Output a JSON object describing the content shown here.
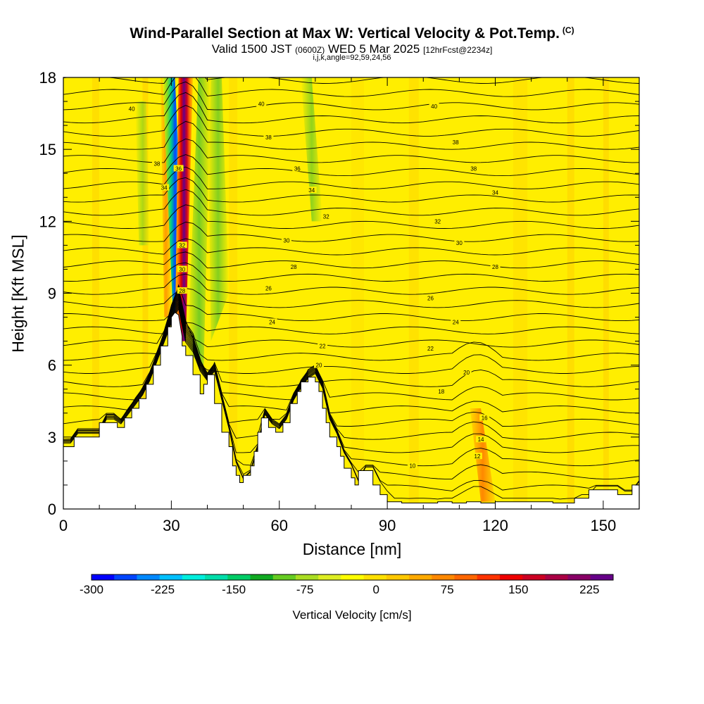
{
  "header": {
    "title": "Wind-Parallel Section at Max W: Vertical Velocity & Pot.Temp.",
    "copyright": "(C)",
    "valid_pre": "Valid 1500 JST",
    "valid_zulu": "(0600Z)",
    "valid_date": "WED 5 Mar 2025",
    "forecast": "[12hrFcst@2234z]",
    "indices": "i,j,k,angle=92,59,24,56"
  },
  "chart_data": {
    "type": "heatmap",
    "title": "Wind-Parallel Section at Max W: Vertical Velocity & Pot.Temp.",
    "xlabel": "Distance [nm]",
    "ylabel": "Height [Kft MSL]",
    "xlim": [
      0,
      160
    ],
    "ylim": [
      0,
      18
    ],
    "x_ticks": [
      0,
      30,
      60,
      90,
      120,
      150
    ],
    "y_ticks": [
      0,
      3,
      6,
      9,
      12,
      15,
      18
    ],
    "colorbar": {
      "title": "Vertical Velocity [cm/s]",
      "ticks": [
        -300,
        -225,
        -150,
        -75,
        0,
        75,
        150,
        225
      ],
      "range": [
        -300,
        250
      ],
      "colors": [
        "#0000ff",
        "#0044ff",
        "#0088ff",
        "#00c0ff",
        "#00eedd",
        "#00ddaa",
        "#00cc66",
        "#11aa22",
        "#66cc22",
        "#aadd22",
        "#dded22",
        "#ffff00",
        "#ffe000",
        "#ffc800",
        "#ffaa00",
        "#ff8800",
        "#ff6600",
        "#ff3300",
        "#ee0000",
        "#cc0022",
        "#aa0044",
        "#880066",
        "#660088"
      ]
    },
    "terrain": {
      "x": [
        0,
        3,
        3,
        10,
        10,
        15,
        15,
        17,
        17,
        19,
        19,
        21,
        21,
        23,
        23,
        25,
        25,
        27,
        27,
        29,
        29,
        30,
        30,
        31,
        32,
        33,
        33,
        34,
        34,
        36,
        36,
        38,
        38,
        39,
        39,
        40,
        40,
        42,
        42,
        44,
        44,
        46,
        46,
        47,
        47,
        48,
        48,
        49,
        49,
        50,
        50,
        52,
        52,
        53,
        53,
        54,
        54,
        55,
        55,
        57,
        57,
        59,
        59,
        61,
        61,
        63,
        63,
        65,
        65,
        66,
        66,
        68,
        68,
        70,
        70,
        71,
        71,
        72,
        72,
        73,
        73,
        74,
        74,
        76,
        76,
        77,
        77,
        78,
        78,
        80,
        80,
        81,
        81,
        82,
        82,
        86,
        86,
        88,
        88,
        90,
        90,
        92,
        92,
        94,
        94,
        104,
        104,
        108,
        108,
        112,
        112,
        116,
        116,
        120,
        120,
        136,
        136,
        142,
        142,
        146,
        146,
        154,
        154,
        158,
        158,
        160
      ],
      "y": [
        2.6,
        2.6,
        3.0,
        3.0,
        3.6,
        3.6,
        3.4,
        3.4,
        3.8,
        3.8,
        4.2,
        4.2,
        4.6,
        4.6,
        5.2,
        5.2,
        6.0,
        6.0,
        6.8,
        6.8,
        7.6,
        7.6,
        8.0,
        8.2,
        8.1,
        7.2,
        6.8,
        6.8,
        6.4,
        6.4,
        5.6,
        5.6,
        4.8,
        4.8,
        5.2,
        5.2,
        5.6,
        5.6,
        4.4,
        4.4,
        3.2,
        3.2,
        2.6,
        2.6,
        1.8,
        1.8,
        1.4,
        1.4,
        1.1,
        1.1,
        1.4,
        1.4,
        1.8,
        1.8,
        2.4,
        2.4,
        3.2,
        3.2,
        3.8,
        3.8,
        3.4,
        3.4,
        3.2,
        3.2,
        3.6,
        3.6,
        4.4,
        4.4,
        4.9,
        4.9,
        5.3,
        5.3,
        5.5,
        5.5,
        5.3,
        5.3,
        4.9,
        4.9,
        4.2,
        4.2,
        3.6,
        3.6,
        3.0,
        3.0,
        2.6,
        2.6,
        2.2,
        2.2,
        1.7,
        1.7,
        1.3,
        1.3,
        1.0,
        1.0,
        1.6,
        1.6,
        1.0,
        1.0,
        0.6,
        0.6,
        0.3,
        0.3,
        0.3,
        0.3,
        0.25,
        0.25,
        0.3,
        0.3,
        0.25,
        0.25,
        0.3,
        0.3,
        0.25,
        0.25,
        0.3,
        0.3,
        0.25,
        0.25,
        0.45,
        0.45,
        0.8,
        0.8,
        0.6,
        0.6,
        1.0,
        1.0
      ]
    },
    "updraft_core_x": [
      32,
      35,
      37.5,
      41
    ],
    "downdraft_core_x": [
      28.5,
      32
    ],
    "contour_labels": [
      {
        "text": "40",
        "x": 19,
        "y": 16.7
      },
      {
        "text": "40",
        "x": 55,
        "y": 16.9
      },
      {
        "text": "40",
        "x": 103,
        "y": 16.8
      },
      {
        "text": "38",
        "x": 26,
        "y": 14.4
      },
      {
        "text": "38",
        "x": 57,
        "y": 15.5
      },
      {
        "text": "38",
        "x": 109,
        "y": 15.3
      },
      {
        "text": "38",
        "x": 114,
        "y": 14.2
      },
      {
        "text": "36",
        "x": 32,
        "y": 14.2
      },
      {
        "text": "36",
        "x": 65,
        "y": 14.2
      },
      {
        "text": "34",
        "x": 28,
        "y": 13.4
      },
      {
        "text": "34",
        "x": 69,
        "y": 13.3
      },
      {
        "text": "34",
        "x": 120,
        "y": 13.2
      },
      {
        "text": "32",
        "x": 73,
        "y": 12.2
      },
      {
        "text": "32",
        "x": 104,
        "y": 12.0
      },
      {
        "text": "32",
        "x": 33,
        "y": 11.0
      },
      {
        "text": "30",
        "x": 62,
        "y": 11.2
      },
      {
        "text": "30",
        "x": 110,
        "y": 11.1
      },
      {
        "text": "30",
        "x": 33,
        "y": 10.0
      },
      {
        "text": "28",
        "x": 64,
        "y": 10.1
      },
      {
        "text": "28",
        "x": 120,
        "y": 10.1
      },
      {
        "text": "28",
        "x": 33,
        "y": 9.1
      },
      {
        "text": "26",
        "x": 57,
        "y": 9.2
      },
      {
        "text": "26",
        "x": 102,
        "y": 8.8
      },
      {
        "text": "24",
        "x": 58,
        "y": 7.8
      },
      {
        "text": "24",
        "x": 109,
        "y": 7.8
      },
      {
        "text": "22",
        "x": 72,
        "y": 6.8
      },
      {
        "text": "22",
        "x": 102,
        "y": 6.7
      },
      {
        "text": "20",
        "x": 71,
        "y": 6.0
      },
      {
        "text": "20",
        "x": 112,
        "y": 5.7
      },
      {
        "text": "18",
        "x": 105,
        "y": 4.9
      },
      {
        "text": "16",
        "x": 117,
        "y": 3.8
      },
      {
        "text": "14",
        "x": 116,
        "y": 2.9
      },
      {
        "text": "12",
        "x": 115,
        "y": 2.2
      },
      {
        "text": "10",
        "x": 97,
        "y": 1.8
      }
    ]
  }
}
